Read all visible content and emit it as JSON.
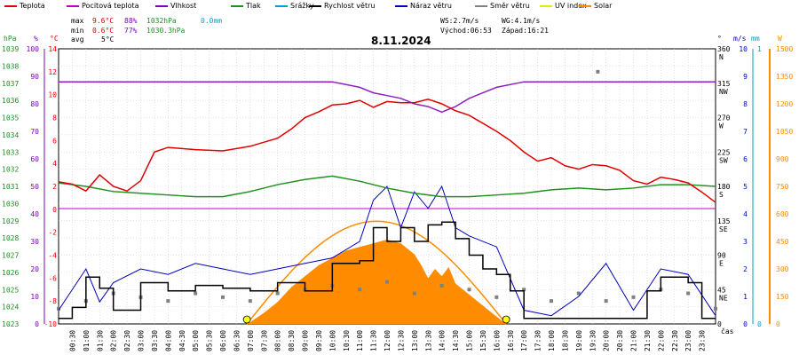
{
  "legend": [
    {
      "label": "Teplota",
      "color": "#e00000"
    },
    {
      "label": "Pocitová teplota",
      "color": "#c000c0"
    },
    {
      "label": "Vlhkost",
      "color": "#8000c0"
    },
    {
      "label": "Tlak",
      "color": "#209020"
    },
    {
      "label": "Srážky",
      "color": "#00a0d0"
    },
    {
      "label": "Rychlost větru",
      "color": "#000000"
    },
    {
      "label": "Náraz větru",
      "color": "#0000c0"
    },
    {
      "label": "Směr větru",
      "color": "#808080"
    },
    {
      "label": "UV index",
      "color": "#e8e800"
    },
    {
      "label": "Solar",
      "color": "#ff8c00"
    }
  ],
  "stats": {
    "max_label": "max",
    "max_temp": "9.6°C",
    "max_hum": "88%",
    "max_press": "1032hPa",
    "max_rain": "0.0mm",
    "min_label": "min",
    "min_temp": "0.6°C",
    "min_hum": "77%",
    "min_press": "1030.3hPa",
    "avg_label": "avg",
    "avg_temp": "5°C",
    "ws": "WS:2.7m/s",
    "wg": "WG:4.1m/s",
    "sunrise": "Východ:06:53",
    "sunset": "Západ:16:21"
  },
  "colors": {
    "temp": "#e00000",
    "hum": "#9020c0",
    "press": "#209020",
    "wind": "#000000",
    "gust": "#0000c0",
    "dir": "#808080",
    "solar": "#ff8c00",
    "uv": "#e8e800",
    "grid": "#cccccc"
  },
  "chart_data": {
    "type": "line",
    "title": "8.11.2024",
    "xlabel": "čas",
    "x_ticks": [
      "00:30",
      "01:00",
      "01:30",
      "02:00",
      "02:30",
      "03:00",
      "03:30",
      "04:00",
      "04:30",
      "05:00",
      "05:30",
      "06:00",
      "06:30",
      "07:00",
      "07:30",
      "08:00",
      "08:30",
      "09:00",
      "09:30",
      "10:00",
      "10:30",
      "11:00",
      "11:30",
      "12:00",
      "12:30",
      "13:00",
      "13:30",
      "14:00",
      "14:30",
      "15:00",
      "15:30",
      "16:00",
      "16:30",
      "17:00",
      "17:30",
      "18:00",
      "18:30",
      "19:00",
      "19:30",
      "20:00",
      "20:30",
      "21:00",
      "21:30",
      "22:00",
      "22:30",
      "23:00",
      "23:30"
    ],
    "axes": {
      "hpa_ticks": [
        "1039",
        "1038",
        "1037",
        "1036",
        "1035",
        "1034",
        "1033",
        "1032",
        "1031",
        "1030",
        "1029",
        "1028",
        "1027",
        "1026",
        "1025",
        "1024",
        "1023"
      ],
      "pct_ticks": [
        "100",
        "90",
        "80",
        "70",
        "60",
        "50",
        "40",
        "30",
        "20",
        "10",
        "0"
      ],
      "degc_ticks": [
        "14",
        "12",
        "10",
        "8",
        "6",
        "4",
        "2",
        "0",
        "-2",
        "-4",
        "-6",
        "-8",
        "-10"
      ],
      "dir_ticks": [
        "360 N",
        "315 NW",
        "270 W",
        "225 SW",
        "180 S",
        "135 SE",
        "90 E",
        "45 NE",
        "0"
      ],
      "ms_ticks": [
        "10",
        "9",
        "8",
        "7",
        "6",
        "5",
        "4",
        "3",
        "2",
        "1",
        "0"
      ],
      "mm_ticks": [
        "1",
        "0"
      ],
      "w_ticks": [
        "1500",
        "1350",
        "1200",
        "1050",
        "900",
        "750",
        "600",
        "450",
        "300",
        "150",
        "0"
      ],
      "ylim_temp": [
        -10,
        14
      ],
      "ylim_hum": [
        0,
        100
      ],
      "ylim_press": [
        1023,
        1039
      ],
      "ylim_wind": [
        0,
        10
      ],
      "ylim_solar": [
        0,
        1500
      ]
    },
    "series": [
      {
        "name": "Teplota",
        "unit": "°C",
        "x": [
          0,
          0.5,
          1,
          1.5,
          2,
          2.5,
          3,
          3.5,
          4,
          5,
          6,
          7,
          8,
          8.5,
          9,
          9.5,
          10,
          10.5,
          11,
          11.5,
          12,
          12.5,
          13,
          13.5,
          14,
          14.5,
          15,
          15.5,
          16,
          16.5,
          17,
          17.5,
          18,
          18.5,
          19,
          19.5,
          20,
          20.5,
          21,
          21.5,
          22,
          22.5,
          23,
          23.5,
          24
        ],
        "values": [
          2.4,
          2.2,
          1.6,
          3.0,
          2.0,
          1.6,
          2.5,
          5.0,
          5.4,
          5.2,
          5.1,
          5.5,
          6.2,
          7.0,
          8.0,
          8.5,
          9.1,
          9.2,
          9.5,
          8.9,
          9.4,
          9.3,
          9.3,
          9.6,
          9.2,
          8.6,
          8.2,
          7.5,
          6.8,
          6.0,
          5.0,
          4.2,
          4.5,
          3.8,
          3.5,
          3.9,
          3.8,
          3.4,
          2.5,
          2.2,
          2.8,
          2.6,
          2.3,
          1.5,
          0.6
        ]
      },
      {
        "name": "Vlhkost",
        "unit": "%",
        "x": [
          0,
          4,
          6,
          8,
          9,
          10,
          11,
          11.5,
          12,
          12.5,
          13,
          13.5,
          14,
          14.5,
          15,
          15.5,
          16,
          17,
          18,
          20,
          24
        ],
        "values": [
          88,
          88,
          88,
          88,
          88,
          88,
          86,
          84,
          83,
          82,
          80,
          79,
          77,
          79,
          82,
          84,
          86,
          88,
          88,
          88,
          88
        ]
      },
      {
        "name": "Tlak",
        "unit": "hPa",
        "x": [
          0,
          1,
          2,
          3,
          4,
          5,
          6,
          7,
          8,
          9,
          10,
          11,
          12,
          13,
          14,
          15,
          16,
          17,
          18,
          19,
          20,
          21,
          22,
          23,
          24
        ],
        "values": [
          1031.2,
          1031.0,
          1030.7,
          1030.6,
          1030.5,
          1030.4,
          1030.4,
          1030.7,
          1031.1,
          1031.4,
          1031.6,
          1031.3,
          1030.9,
          1030.6,
          1030.4,
          1030.4,
          1030.5,
          1030.6,
          1030.8,
          1030.9,
          1030.8,
          1030.9,
          1031.1,
          1031.1,
          1031.0
        ]
      },
      {
        "name": "Rychlost větru",
        "unit": "m/s",
        "x": [
          0,
          0.5,
          1,
          1.5,
          2,
          3,
          4,
          5,
          6,
          7,
          8,
          9,
          10,
          11,
          11.5,
          12,
          12.5,
          13,
          13.5,
          14,
          14.5,
          15,
          15.5,
          16,
          16.5,
          17,
          18,
          19,
          20,
          21,
          21.5,
          22,
          22.5,
          23,
          23.5,
          24
        ],
        "values": [
          0.2,
          0.6,
          1.7,
          1.3,
          0.5,
          1.5,
          1.2,
          1.4,
          1.3,
          1.2,
          1.5,
          1.2,
          2.2,
          2.3,
          3.5,
          3.0,
          3.5,
          3.0,
          3.6,
          3.7,
          3.1,
          2.5,
          2.0,
          1.8,
          1.2,
          0.2,
          0.2,
          0.2,
          0.2,
          0.2,
          1.2,
          1.7,
          1.7,
          1.5,
          0.2,
          0.2
        ]
      },
      {
        "name": "Náraz větru",
        "unit": "m/s",
        "x": [
          0,
          1,
          1.5,
          2,
          3,
          4,
          5,
          6,
          7,
          8,
          9,
          10,
          11,
          11.5,
          12,
          12.5,
          13,
          13.5,
          14,
          14.5,
          15,
          16,
          17,
          18,
          19,
          20,
          21,
          22,
          23,
          24
        ],
        "values": [
          0.5,
          2.0,
          0.8,
          1.5,
          2.0,
          1.8,
          2.2,
          2.0,
          1.8,
          2.0,
          2.2,
          2.4,
          3.0,
          4.5,
          5.0,
          3.5,
          4.8,
          4.2,
          5.0,
          3.5,
          3.2,
          2.8,
          0.5,
          0.3,
          1.0,
          2.2,
          0.5,
          2.0,
          1.8,
          0.3
        ]
      },
      {
        "name": "Solar",
        "unit": "W",
        "x": [
          6.9,
          7.5,
          8,
          8.5,
          9,
          9.5,
          10,
          10.5,
          11,
          11.5,
          12,
          12.5,
          13,
          13.25,
          13.5,
          13.75,
          14,
          14.25,
          14.5,
          15,
          15.5,
          16,
          16.35
        ],
        "values": [
          0,
          60,
          120,
          200,
          260,
          320,
          360,
          400,
          420,
          440,
          460,
          440,
          380,
          320,
          250,
          300,
          260,
          310,
          220,
          160,
          100,
          40,
          0
        ]
      },
      {
        "name": "Směr větru",
        "unit": "°",
        "x": [
          0,
          1,
          2,
          3,
          4,
          5,
          6,
          7,
          8,
          9,
          10,
          11,
          12,
          13,
          14,
          15,
          16,
          17,
          18,
          19,
          19.7,
          20,
          21,
          22,
          23,
          24
        ],
        "values": [
          20,
          30,
          40,
          35,
          30,
          40,
          35,
          30,
          40,
          45,
          50,
          45,
          55,
          40,
          50,
          45,
          35,
          45,
          30,
          40,
          330,
          30,
          35,
          45,
          40,
          20
        ]
      }
    ],
    "sunrise_x": 6.88,
    "sunset_x": 16.35
  }
}
